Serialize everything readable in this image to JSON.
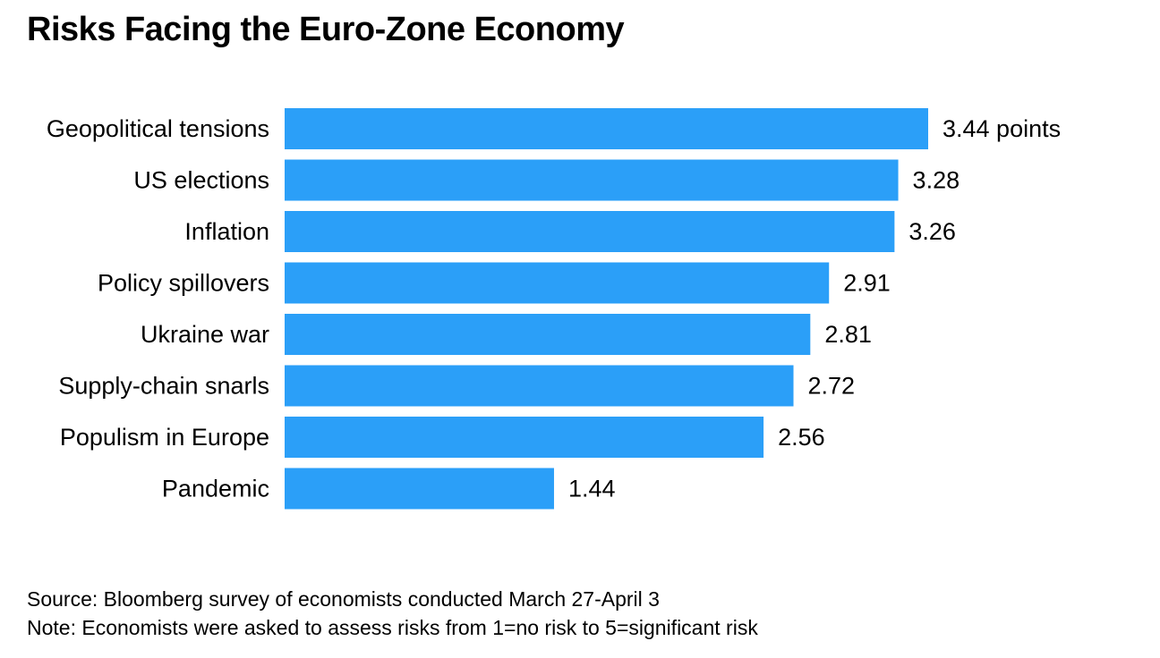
{
  "chart_data": {
    "type": "bar",
    "orientation": "horizontal",
    "title": "Risks Facing the Euro-Zone Economy",
    "categories": [
      "Geopolitical tensions",
      "US elections",
      "Inflation",
      "Policy spillovers",
      "Ukraine war",
      "Supply-chain snarls",
      "Populism in Europe",
      "Pandemic"
    ],
    "values": [
      3.44,
      3.28,
      3.26,
      2.91,
      2.81,
      2.72,
      2.56,
      1.44
    ],
    "value_labels": [
      "3.44 points",
      "3.28",
      "3.26",
      "2.91",
      "2.81",
      "2.72",
      "2.56",
      "1.44"
    ],
    "xlabel": "",
    "ylabel": "",
    "xlim": [
      0,
      3.44
    ],
    "bar_color": "#2b9ff8",
    "grid": false,
    "legend": "none"
  },
  "footer": {
    "source": "Source: Bloomberg survey of economists conducted March 27-April 3",
    "note": "Note: Economists were asked to assess risks from 1=no risk to 5=significant risk"
  }
}
